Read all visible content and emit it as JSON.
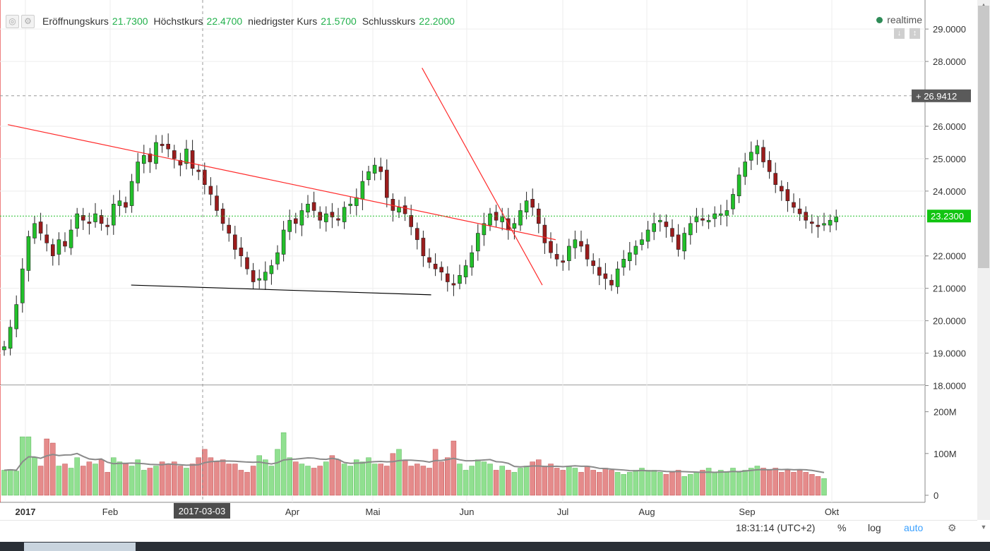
{
  "toolbar": {
    "icons": [
      "settings-circle-icon",
      "gear-icon"
    ],
    "legend": [
      {
        "label": "Eröffnungskurs",
        "value": "21.7300"
      },
      {
        "label": "Höchstkurs",
        "value": "22.4700"
      },
      {
        "label": "niedrigster Kurs",
        "value": "21.5700"
      },
      {
        "label": "Schlusskurs",
        "value": "22.2000"
      }
    ],
    "realtime_label": "realtime"
  },
  "colors": {
    "up": "#22c02a",
    "down": "#9b1c1c",
    "vol_up": "#90e090",
    "vol_down": "#e58b8b",
    "trend": "#ff2a2a",
    "last_price_line": "#22c02a"
  },
  "crosshair_price": "26.9412",
  "crosshair_date": "2017-03-03",
  "last_price": "23.2300",
  "bottom_bar": {
    "time": "18:31:14 (UTC+2)",
    "percent_button": "%",
    "log_button": "log",
    "auto_button": "auto",
    "settings_icon": "gear-icon"
  },
  "chart_data": [
    {
      "type": "candlestick",
      "title": "",
      "x_tick_labels": [
        "2017",
        "Feb",
        "Apr",
        "Mai",
        "Jun",
        "Jul",
        "Aug",
        "Sep",
        "Okt"
      ],
      "y_tick_labels": [
        "29.0000",
        "28.0000",
        "26.0000",
        "25.0000",
        "24.0000",
        "22.0000",
        "21.0000",
        "20.0000",
        "19.0000",
        "18.0000"
      ],
      "ylim": [
        18,
        29.6
      ],
      "grid": true,
      "series": [
        {
          "name": "",
          "close": [
            19.2,
            19.8,
            20.5,
            21.6,
            22.6,
            23.0,
            22.7,
            22.4,
            22.0,
            22.5,
            22.3,
            22.8,
            23.3,
            23.1,
            23.0,
            23.3,
            23.0,
            22.9,
            23.6,
            23.7,
            23.5,
            24.3,
            24.9,
            25.1,
            24.9,
            25.5,
            25.4,
            25.3,
            25.0,
            24.8,
            25.3,
            24.7,
            24.6,
            24.2,
            23.9,
            23.4,
            23.0,
            22.7,
            22.2,
            22.0,
            21.6,
            21.2,
            21.3,
            21.5,
            21.7,
            22.1,
            22.8,
            23.1,
            23.0,
            23.4,
            23.6,
            23.4,
            23.1,
            23.3,
            23.2,
            23.1,
            23.5,
            23.6,
            23.8,
            24.3,
            24.6,
            24.8,
            24.6,
            23.8,
            23.4,
            23.5,
            23.3,
            22.9,
            22.5,
            22.0,
            21.8,
            21.6,
            21.5,
            21.2,
            21.1,
            21.4,
            21.7,
            22.1,
            22.7,
            23.0,
            23.3,
            23.1,
            23.2,
            22.8,
            23.0,
            23.4,
            23.7,
            23.5,
            23.0,
            22.4,
            22.1,
            21.9,
            21.8,
            22.3,
            22.5,
            22.3,
            21.9,
            21.7,
            21.4,
            21.3,
            21.1,
            21.6,
            21.9,
            22.1,
            22.3,
            22.5,
            22.8,
            23.0,
            23.1,
            22.9,
            22.6,
            22.2,
            22.7,
            23.0,
            23.2,
            23.1,
            23.1,
            23.3,
            23.3,
            23.4,
            23.9,
            24.5,
            24.9,
            25.2,
            25.4,
            24.9,
            24.6,
            24.2,
            24.0,
            23.7,
            23.5,
            23.3,
            23.1,
            23.0,
            22.9,
            23.0,
            23.1,
            23.2
          ],
          "y_units": "price"
        }
      ],
      "annotations": {
        "resistance_line": [
          [
            0.6,
            26.05
          ],
          [
            90.8,
            22.5
          ]
        ],
        "support_line": [
          [
            20.9,
            21.1
          ],
          [
            70.3,
            20.8
          ]
        ],
        "downtrend_line": [
          [
            68.8,
            27.8
          ],
          [
            88.6,
            21.1
          ]
        ]
      }
    },
    {
      "type": "bar",
      "title": "",
      "y_tick_labels": [
        "200M",
        "100M",
        "0"
      ],
      "ylim": [
        0,
        230
      ],
      "series": [
        {
          "name": "",
          "values": [
            60,
            62,
            58,
            140,
            140,
            90,
            70,
            135,
            125,
            70,
            75,
            65,
            90,
            70,
            80,
            75,
            85,
            55,
            90,
            80,
            75,
            70,
            85,
            60,
            65,
            70,
            80,
            75,
            80,
            70,
            65,
            75,
            90,
            110,
            90,
            80,
            85,
            75,
            75,
            60,
            55,
            70,
            95,
            85,
            70,
            110,
            150,
            90,
            80,
            75,
            70,
            65,
            70,
            80,
            95,
            85,
            75,
            70,
            85,
            80,
            90,
            75,
            75,
            70,
            100,
            110,
            85,
            70,
            75,
            70,
            65,
            110,
            80,
            90,
            130,
            75,
            60,
            70,
            85,
            80,
            75,
            60,
            70,
            60,
            55,
            65,
            70,
            80,
            85,
            70,
            75,
            65,
            60,
            70,
            65,
            55,
            70,
            60,
            55,
            65,
            60,
            55,
            50,
            55,
            60,
            65,
            60,
            60,
            55,
            50,
            55,
            60,
            45,
            50,
            55,
            60,
            65,
            55,
            60,
            55,
            65,
            55,
            60,
            65,
            70,
            65,
            60,
            65,
            55,
            60,
            55,
            60,
            55,
            50,
            45,
            40
          ]
        }
      ]
    }
  ]
}
